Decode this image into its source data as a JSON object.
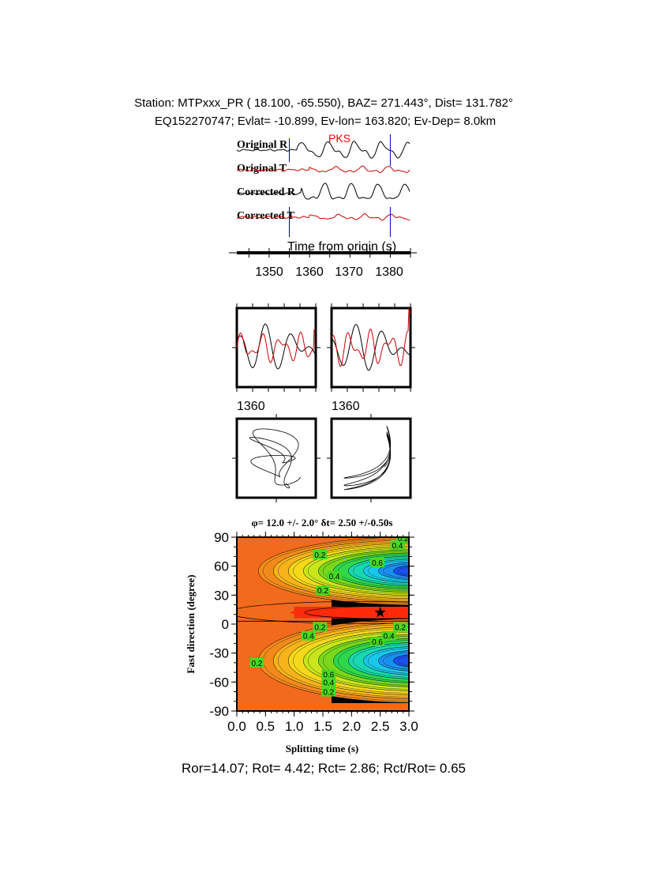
{
  "header": {
    "line1": "Station: MTPxxx_PR (  18.100,  -65.550), BAZ=  271.443°, Dist=  131.782°",
    "line2": "EQ152270747; Evlat= -10.899, Ev-lon= 163.820; Ev-Dep=  8.0km"
  },
  "colors": {
    "radial": "#000000",
    "transverse": "#cc0000",
    "window_marker": "#0000cc",
    "phase_label": "#ff0000"
  },
  "chart_data": [
    {
      "type": "line",
      "panel": "waveforms",
      "traces": [
        "Original R",
        "Original T",
        "Corrected R",
        "Corrected T"
      ],
      "phase_label": "PKS",
      "xlabel": "Time from origin (s)",
      "x_ticks": [
        "1350",
        "1360",
        "1370",
        "1380"
      ],
      "xlim": [
        1342,
        1385
      ],
      "window": [
        1355,
        1380
      ]
    },
    {
      "type": "line",
      "panel": "windowed-waveforms",
      "tick_labels": [
        "1360",
        "1360"
      ]
    },
    {
      "type": "line",
      "panel": "particle-motion"
    },
    {
      "type": "heatmap",
      "panel": "splitting-grid",
      "title": "φ= 12.0 +/- 2.0° δt= 2.50 +/-0.50s",
      "xlabel": "Splitting time (s)",
      "ylabel": "Fast direction (degree)",
      "xlim": [
        0,
        3
      ],
      "ylim": [
        -90,
        90
      ],
      "x_ticks": [
        "0.0",
        "0.5",
        "1.0",
        "1.5",
        "2.0",
        "2.5",
        "3.0"
      ],
      "y_ticks": [
        "90",
        "60",
        "30",
        "0",
        "-30",
        "-60",
        "-90"
      ],
      "contour_labels": [
        "0.2",
        "0.4",
        "0.6"
      ],
      "best_fit": {
        "dt": 2.5,
        "phi": 12.0
      },
      "colormap": "rainbow"
    }
  ],
  "footer": {
    "stats": "Ror=14.07; Rot= 4.42; Rct= 2.86; Rct/Rot= 0.65"
  }
}
